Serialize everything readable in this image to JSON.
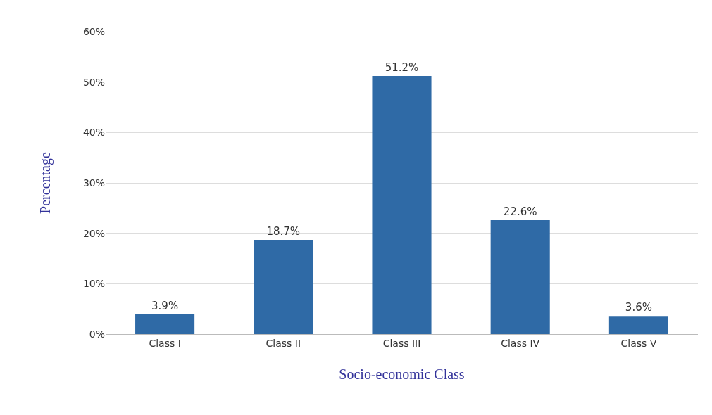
{
  "chart_data": {
    "type": "bar",
    "xlabel": "Socio-economic Class",
    "ylabel": "Percentage",
    "categories": [
      "Class I",
      "Class II",
      "Class III",
      "Class IV",
      "Class V"
    ],
    "values": [
      3.9,
      18.7,
      51.2,
      22.6,
      3.6
    ],
    "value_labels": [
      "3.9%",
      "18.7%",
      "51.2%",
      "22.6%",
      "3.6%"
    ],
    "color": "#2f6aa6",
    "ylim": [
      0,
      60
    ],
    "yticks": [
      {
        "value": 0,
        "label": "0%"
      },
      {
        "value": 10,
        "label": "10%"
      },
      {
        "value": 20,
        "label": "20%"
      },
      {
        "value": 30,
        "label": "30%"
      },
      {
        "value": 40,
        "label": "40%"
      },
      {
        "value": 50,
        "label": "50%"
      },
      {
        "value": 60,
        "label": "60%"
      }
    ],
    "grid": "y"
  }
}
